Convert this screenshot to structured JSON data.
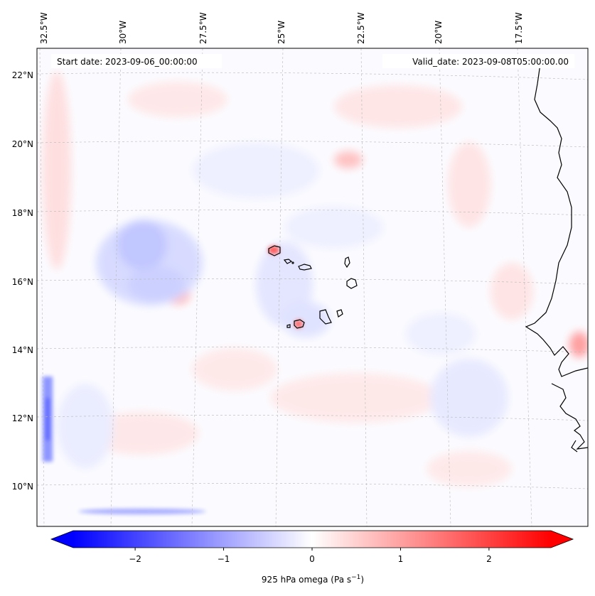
{
  "map": {
    "lon_labels": [
      "32.5°W",
      "30°W",
      "27.5°W",
      "25°W",
      "22.5°W",
      "20°W",
      "17.5°W"
    ],
    "lat_labels": [
      "22°N",
      "20°N",
      "18°N",
      "16°N",
      "14°N",
      "12°N",
      "10°N"
    ],
    "start_text": "Start date: 2023-09-06_00:00:00",
    "valid_text": "Valid_date: 2023-09-08T05:00:00.00",
    "field": "925 hPa omega",
    "colors": {
      "negative": "#0000ff",
      "zero": "#ffffff",
      "positive": "#ff0000",
      "coast": "#000000",
      "grid": "#b0b0b0"
    }
  },
  "colorbar": {
    "ticks": [
      "−2",
      "−1",
      "0",
      "1",
      "2"
    ],
    "label_text": "925 hPa omega (Pa s",
    "label_exp": "−1",
    "label_close": ")",
    "vmin": -2.7,
    "vmax": 2.7,
    "tick_values": [
      -2,
      -1,
      0,
      1,
      2
    ]
  }
}
